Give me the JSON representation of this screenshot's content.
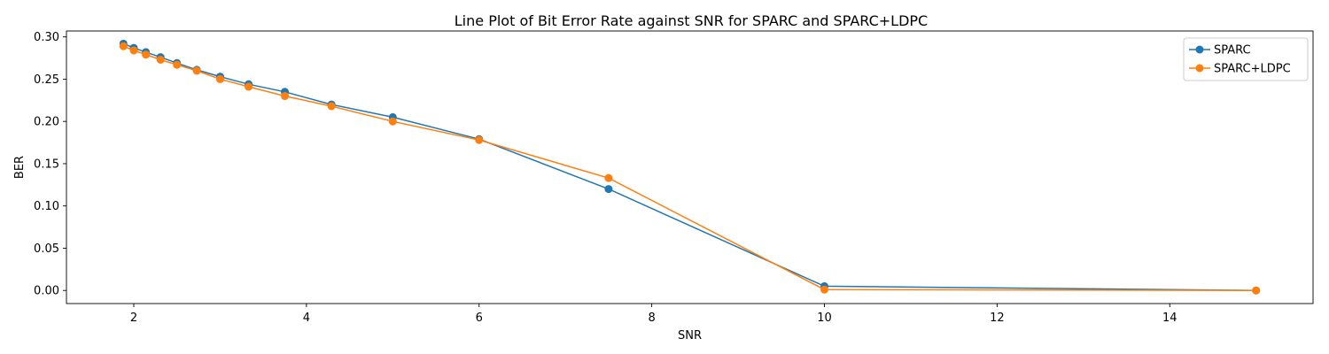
{
  "chart_data": {
    "type": "line",
    "title": "Line Plot of Bit Error Rate against SNR for SPARC and SPARC+LDPC",
    "xlabel": "SNR",
    "ylabel": "BER",
    "xlim": [
      1.22,
      15.66
    ],
    "ylim": [
      -0.0155,
      0.307
    ],
    "xticks": [
      2,
      4,
      6,
      8,
      10,
      12,
      14
    ],
    "xtick_labels": [
      "2",
      "4",
      "6",
      "8",
      "10",
      "12",
      "14"
    ],
    "yticks": [
      0.0,
      0.05,
      0.1,
      0.15,
      0.2,
      0.25,
      0.3
    ],
    "ytick_labels": [
      "0.00",
      "0.05",
      "0.10",
      "0.15",
      "0.20",
      "0.25",
      "0.30"
    ],
    "grid": false,
    "legend_position": "top-right",
    "series": [
      {
        "name": "SPARC",
        "color": "#1f77b4",
        "x": [
          1.88,
          2.0,
          2.14,
          2.31,
          2.5,
          2.73,
          3.0,
          3.33,
          3.75,
          4.29,
          5.0,
          6.0,
          7.5,
          10.0,
          15.0
        ],
        "y": [
          0.292,
          0.287,
          0.282,
          0.276,
          0.269,
          0.261,
          0.253,
          0.244,
          0.235,
          0.22,
          0.205,
          0.179,
          0.12,
          0.005,
          0.0
        ]
      },
      {
        "name": "SPARC+LDPC",
        "color": "#ff7f0e",
        "x": [
          1.88,
          2.0,
          2.14,
          2.31,
          2.5,
          2.73,
          3.0,
          3.33,
          3.75,
          4.29,
          5.0,
          6.0,
          7.5,
          10.0,
          15.0
        ],
        "y": [
          0.289,
          0.284,
          0.279,
          0.273,
          0.267,
          0.26,
          0.25,
          0.241,
          0.23,
          0.218,
          0.2,
          0.178,
          0.133,
          0.001,
          0.0
        ]
      }
    ]
  }
}
